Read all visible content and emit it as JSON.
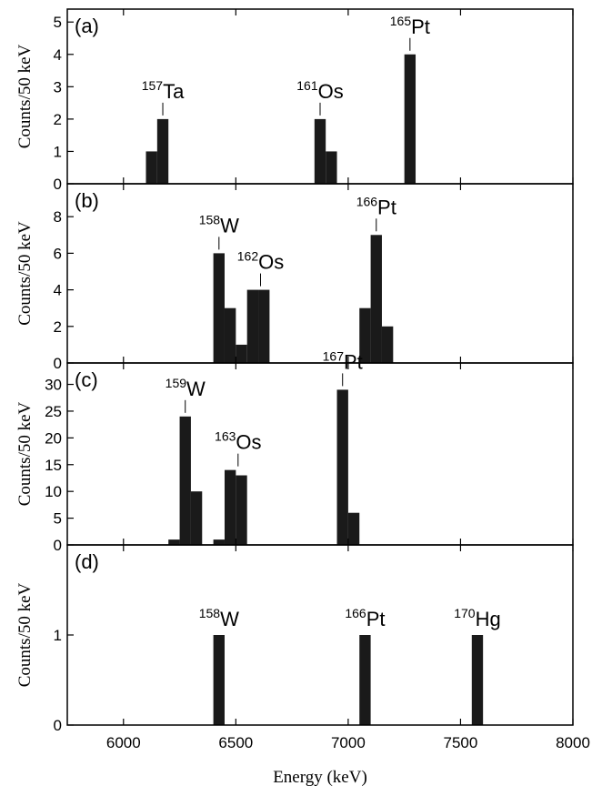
{
  "chart_data": [
    {
      "panel": "(a)",
      "type": "bar",
      "ylabel": "Counts/50 keV",
      "xlabel": "Energy (keV)",
      "xlim": [
        5750,
        8000
      ],
      "ylim": [
        0,
        5.4
      ],
      "yticks": [
        0,
        1,
        2,
        3,
        4,
        5
      ],
      "bin_width": 50,
      "bars": [
        {
          "x": 6100,
          "value": 1
        },
        {
          "x": 6150,
          "value": 2
        },
        {
          "x": 6850,
          "value": 2
        },
        {
          "x": 6900,
          "value": 1
        },
        {
          "x": 7250,
          "value": 4
        }
      ],
      "annotations": [
        {
          "mass": "157",
          "symbol": "Ta",
          "x": 6175,
          "y": 2
        },
        {
          "mass": "161",
          "symbol": "Os",
          "x": 6875,
          "y": 2
        },
        {
          "mass": "165",
          "symbol": "Pt",
          "x": 7275,
          "y": 4
        }
      ]
    },
    {
      "panel": "(b)",
      "type": "bar",
      "ylabel": "Counts/50 keV",
      "xlabel": "Energy (keV)",
      "xlim": [
        5750,
        8000
      ],
      "ylim": [
        0,
        9.8
      ],
      "yticks": [
        0,
        2,
        4,
        6,
        8
      ],
      "bin_width": 50,
      "bars": [
        {
          "x": 6400,
          "value": 6
        },
        {
          "x": 6450,
          "value": 3
        },
        {
          "x": 6500,
          "value": 1
        },
        {
          "x": 6550,
          "value": 4
        },
        {
          "x": 6600,
          "value": 4
        },
        {
          "x": 7050,
          "value": 3
        },
        {
          "x": 7100,
          "value": 7
        },
        {
          "x": 7150,
          "value": 2
        }
      ],
      "annotations": [
        {
          "mass": "158",
          "symbol": "W",
          "x": 6425,
          "y": 6
        },
        {
          "mass": "162",
          "symbol": "Os",
          "x": 6610,
          "y": 4
        },
        {
          "mass": "166",
          "symbol": "Pt",
          "x": 7125,
          "y": 7
        }
      ]
    },
    {
      "panel": "(c)",
      "type": "bar",
      "ylabel": "Counts/50 keV",
      "xlabel": "Energy (keV)",
      "xlim": [
        5750,
        8000
      ],
      "ylim": [
        0,
        34
      ],
      "yticks": [
        0,
        5,
        10,
        15,
        20,
        25,
        30
      ],
      "bin_width": 50,
      "bars": [
        {
          "x": 6200,
          "value": 1
        },
        {
          "x": 6250,
          "value": 24
        },
        {
          "x": 6300,
          "value": 10
        },
        {
          "x": 6400,
          "value": 1
        },
        {
          "x": 6450,
          "value": 14
        },
        {
          "x": 6500,
          "value": 13
        },
        {
          "x": 6950,
          "value": 29
        },
        {
          "x": 7000,
          "value": 6
        }
      ],
      "annotations": [
        {
          "mass": "159",
          "symbol": "W",
          "x": 6275,
          "y": 24
        },
        {
          "mass": "163",
          "symbol": "Os",
          "x": 6510,
          "y": 14
        },
        {
          "mass": "167",
          "symbol": "Pt",
          "x": 6975,
          "y": 29
        }
      ]
    },
    {
      "panel": "(d)",
      "type": "bar",
      "ylabel": "Counts/50 keV",
      "xlabel": "Energy (keV)",
      "xlim": [
        5750,
        8000
      ],
      "ylim": [
        0,
        2
      ],
      "yticks": [
        0,
        1
      ],
      "bin_width": 50,
      "bars": [
        {
          "x": 6400,
          "value": 1
        },
        {
          "x": 7050,
          "value": 1
        },
        {
          "x": 7550,
          "value": 1
        }
      ],
      "annotations": [
        {
          "mass": "158",
          "symbol": "W",
          "x": 6425,
          "y": 1,
          "noline": true
        },
        {
          "mass": "166",
          "symbol": "Pt",
          "x": 7075,
          "y": 1,
          "noline": true
        },
        {
          "mass": "170",
          "symbol": "Hg",
          "x": 7575,
          "y": 1,
          "noline": true
        }
      ]
    }
  ],
  "x_axis": {
    "label": "Energy (keV)",
    "ticks": [
      6000,
      6500,
      7000,
      7500,
      8000
    ],
    "tick_labels": [
      "6000",
      "6500",
      "7000",
      "7500",
      "8000"
    ]
  },
  "colors": {
    "bar": "#1a1a1a",
    "axis": "#000000"
  }
}
